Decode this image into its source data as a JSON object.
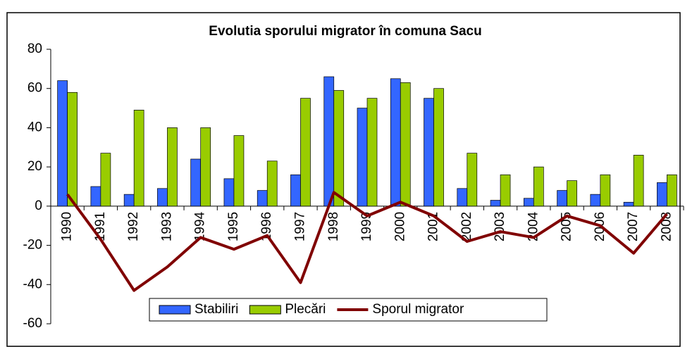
{
  "chart_data": {
    "type": "bar",
    "title": "Evolutia sporului migrator în comuna Sacu",
    "categories": [
      "1990",
      "1991",
      "1992",
      "1993",
      "1994",
      "1995",
      "1996",
      "1997",
      "1998",
      "1999",
      "2000",
      "2001",
      "2002",
      "2003",
      "2004",
      "2005",
      "2006",
      "2007",
      "2008"
    ],
    "series": [
      {
        "name": "Stabiliri",
        "type": "bar",
        "color": "#3366ff",
        "values": [
          64,
          10,
          6,
          9,
          24,
          14,
          8,
          16,
          66,
          50,
          65,
          55,
          9,
          3,
          4,
          8,
          6,
          2,
          12
        ]
      },
      {
        "name": "Plecări",
        "type": "bar",
        "color": "#99cc00",
        "values": [
          58,
          27,
          49,
          40,
          40,
          36,
          23,
          55,
          59,
          55,
          63,
          60,
          27,
          16,
          20,
          13,
          16,
          26,
          16
        ]
      },
      {
        "name": "Sporul migrator",
        "type": "line",
        "color": "#800000",
        "values": [
          6,
          -17,
          -43,
          -31,
          -16,
          -22,
          -15,
          -39,
          7,
          -5,
          2,
          -5,
          -18,
          -13,
          -16,
          -5,
          -10,
          -24,
          -4
        ]
      }
    ],
    "ylim": [
      -60,
      80
    ],
    "yticks": [
      -60,
      -40,
      -20,
      0,
      20,
      40,
      60,
      80
    ]
  }
}
